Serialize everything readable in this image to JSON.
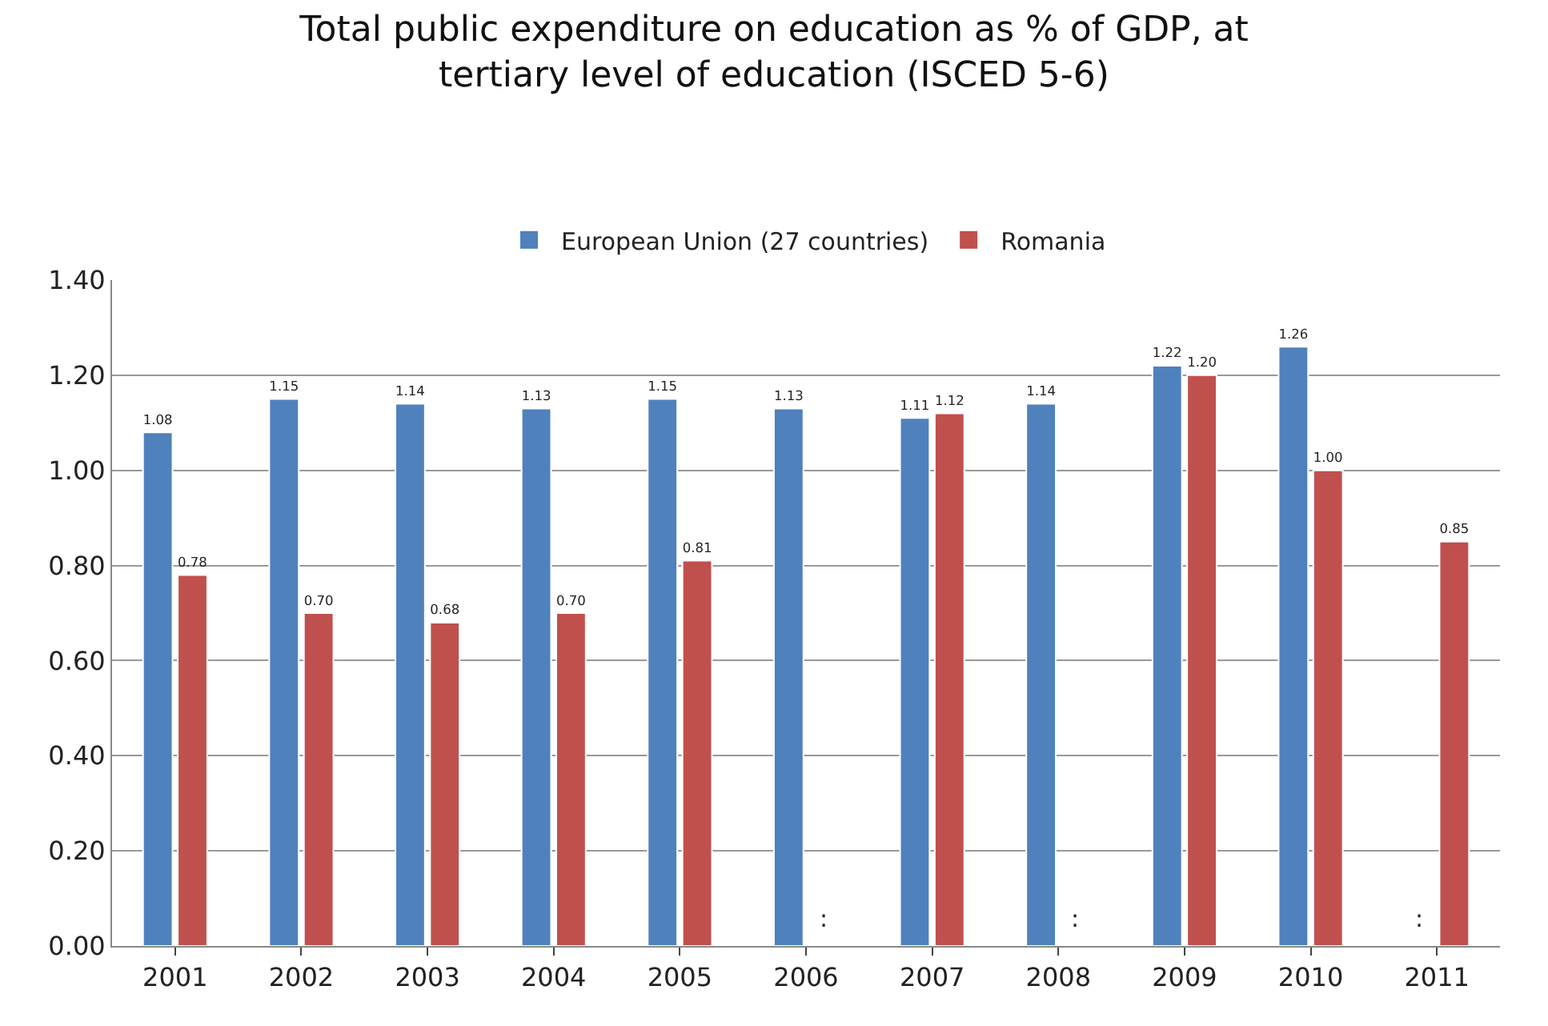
{
  "chart_data": {
    "type": "bar",
    "title": "Total public expenditure on education as % of GDP, at tertiary level of education (ISCED 5-6)",
    "categories": [
      "2001",
      "2002",
      "2003",
      "2004",
      "2005",
      "2006",
      "2007",
      "2008",
      "2009",
      "2010",
      "2011"
    ],
    "series": [
      {
        "name": "European Union (27 countries)",
        "color": "#4f81bd",
        "values": [
          1.08,
          1.15,
          1.14,
          1.13,
          1.15,
          1.13,
          1.11,
          1.14,
          1.22,
          1.26,
          null
        ],
        "value_labels": [
          "1.08",
          "1.15",
          "1.14",
          "1.13",
          "1.15",
          "1.13",
          "1.11",
          "1.14",
          "1.22",
          "1.26",
          ":"
        ]
      },
      {
        "name": "Romania",
        "color": "#c0504d",
        "values": [
          0.78,
          0.7,
          0.68,
          0.7,
          0.81,
          null,
          1.12,
          null,
          1.2,
          1.0,
          0.85
        ],
        "value_labels": [
          "0.78",
          "0.70",
          "0.68",
          "0.70",
          "0.81",
          ":",
          "1.12",
          ":",
          "1.20",
          "1.00",
          "0.85"
        ]
      }
    ],
    "ylim": [
      0,
      1.4
    ],
    "yticks": [
      {
        "value": 0,
        "label": "0.00"
      },
      {
        "value": 0.2,
        "label": "0.20"
      },
      {
        "value": 0.4,
        "label": "0.40"
      },
      {
        "value": 0.6,
        "label": "0.60"
      },
      {
        "value": 0.8,
        "label": "0.80"
      },
      {
        "value": 1.0,
        "label": "1.00"
      },
      {
        "value": 1.2,
        "label": "1.20"
      },
      {
        "value": 1.4,
        "label": "1.40"
      }
    ],
    "grid": "y",
    "legend": "top"
  }
}
